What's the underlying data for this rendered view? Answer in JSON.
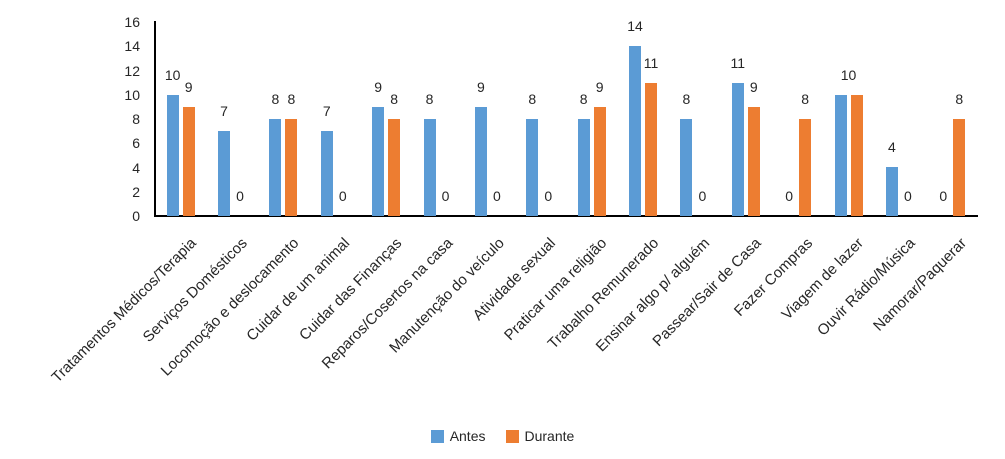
{
  "chart_data": {
    "type": "bar",
    "title": "",
    "categories": [
      "Tratamentos Médicos/Terapia",
      "Serviços Domésticos",
      "Locomoção e deslocamento",
      "Cuidar de um animal",
      "Cuidar das Finanças",
      "Reparos/Cosertos na casa",
      "Manutenção do veículo",
      "Atividade sexual",
      "Praticar uma religião",
      "Trabalho Remunerado",
      "Ensinar algo p/ alguém",
      "Passear/Sair de Casa",
      "Fazer Compras",
      "Viagem de lazer",
      "Ouvir Rádio/Música",
      "Namorar/Paquerar"
    ],
    "series": [
      {
        "name": "Antes",
        "color": "#5B9BD5",
        "values": [
          10,
          7,
          8,
          7,
          9,
          8,
          9,
          8,
          8,
          14,
          8,
          11,
          0,
          10,
          4,
          0
        ]
      },
      {
        "name": "Durante",
        "color": "#ED7D31",
        "values": [
          9,
          0,
          8,
          0,
          8,
          0,
          0,
          0,
          9,
          11,
          0,
          9,
          8,
          10,
          0,
          8
        ]
      }
    ],
    "xlabel": "",
    "ylabel": "",
    "ylim": [
      0,
      16
    ],
    "yticks": [
      0,
      2,
      4,
      6,
      8,
      10,
      12,
      14,
      16
    ],
    "grid": false,
    "data_labels": true,
    "legend_position": "bottom",
    "axis_color": "#000000",
    "text_color": "#262626",
    "background": "#FFFFFF"
  }
}
